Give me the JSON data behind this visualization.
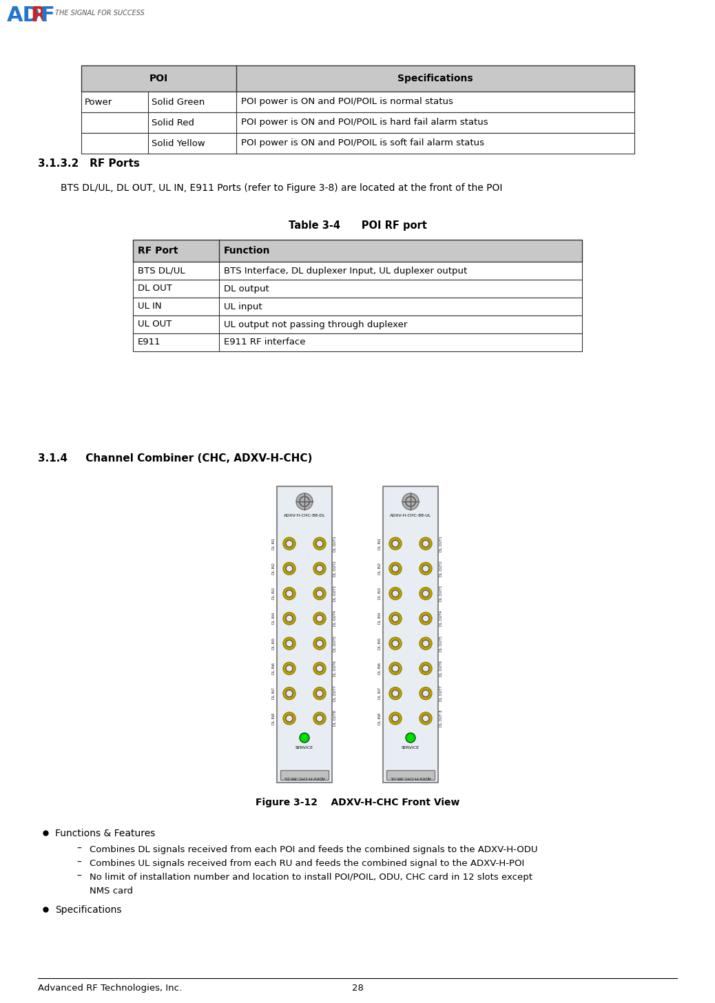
{
  "page_bg": "#ffffff",
  "footer_left": "Advanced RF Technologies, Inc.",
  "footer_page": "28",
  "section_312": "3.1.3.2   RF Ports",
  "para_312": "BTS DL/UL, DL OUT, UL IN, E911 Ports (refer to Figure 3-8) are located at the front of the POI",
  "table3_4_title": "Table 3-4      POI RF port",
  "table3_4_headers": [
    "RF Port",
    "Function"
  ],
  "table3_4_rows": [
    [
      "BTS DL/UL",
      "BTS Interface, DL duplexer Input, UL duplexer output"
    ],
    [
      "DL OUT",
      "DL output"
    ],
    [
      "UL IN",
      "UL input"
    ],
    [
      "UL OUT",
      "UL output not passing through duplexer"
    ],
    [
      "E911",
      "E911 RF interface"
    ]
  ],
  "section_314": "3.1.4     Channel Combiner (CHC, ADXV-H-CHC)",
  "fig312_caption": "Figure 3-12    ADXV-H-CHC Front View",
  "bullet1_title": "Functions & Features",
  "bullet1_items": [
    "Combines DL signals received from each POI and feeds the combined signals to the ADXV-H-ODU",
    "Combines UL signals received from each RU and feeds the combined signal to the ADXV-H-POI",
    "No limit of installation number and location to install POI/POIL, ODU, CHC card in 12 slots except",
    "NMS card"
  ],
  "bullet2_title": "Specifications",
  "table1_col1": [
    "Power",
    "",
    ""
  ],
  "table1_col2": [
    "Solid Green",
    "Solid Red",
    "Solid Yellow"
  ],
  "table1_col3": [
    "POI power is ON and POI/POIL is normal status",
    "POI power is ON and POI/POIL is hard fail alarm status",
    "POI power is ON and POI/POIL is soft fail alarm status"
  ],
  "card1_label_top": "ADXV-H-CHC-88-DL",
  "card2_label_top": "ADXV-H-CHC-88-UL",
  "card_left_labels": [
    "DL IN1",
    "DL IN2",
    "DL IN3",
    "DL IN4",
    "DL IN5",
    "DL IN6",
    "DL IN7",
    "DL IN8"
  ],
  "card_right_labels": [
    "DL OUT1",
    "DL OUT2",
    "DL OUT3",
    "DL OUT4",
    "DL OUT5",
    "DL OUT6",
    "DL OUT7",
    "DL OUT8"
  ],
  "header_bg": "#c8c8c8",
  "table_border": "#000000"
}
